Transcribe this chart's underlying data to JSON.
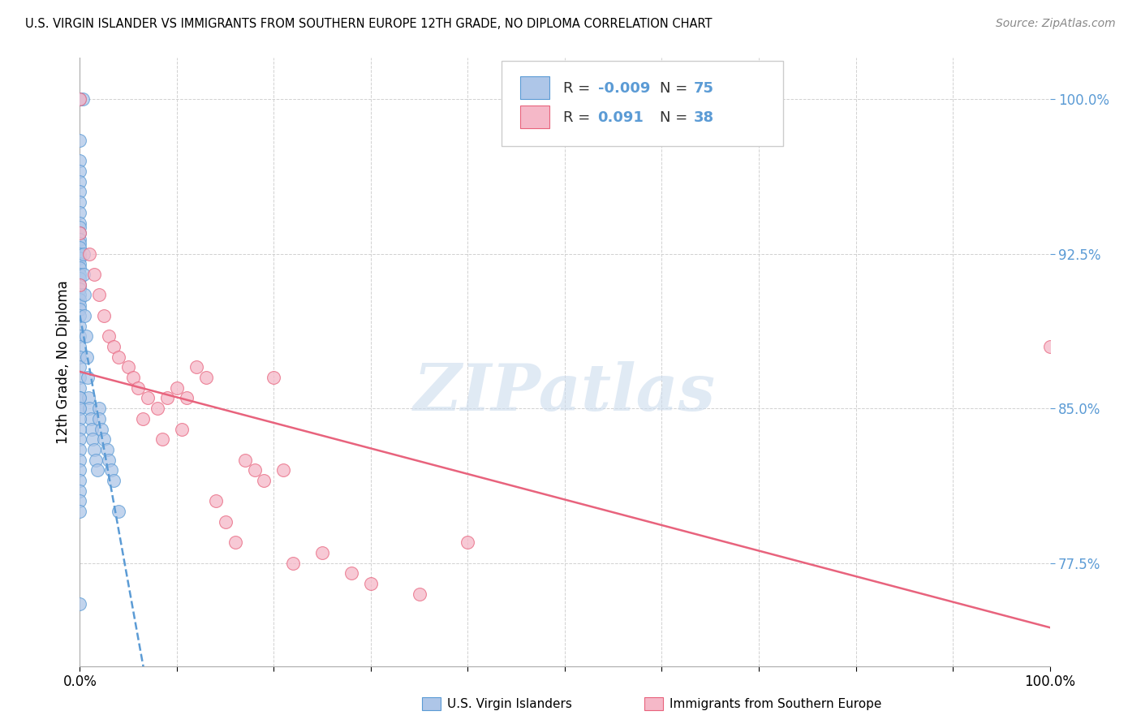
{
  "title": "U.S. VIRGIN ISLANDER VS IMMIGRANTS FROM SOUTHERN EUROPE 12TH GRADE, NO DIPLOMA CORRELATION CHART",
  "source": "Source: ZipAtlas.com",
  "ylabel": "12th Grade, No Diploma",
  "legend_label1": "U.S. Virgin Islanders",
  "legend_label2": "Immigrants from Southern Europe",
  "R1": -0.009,
  "N1": 75,
  "R2": 0.091,
  "N2": 38,
  "color1": "#aec6e8",
  "color2": "#f5b8c8",
  "line_color1": "#5b9bd5",
  "line_color2": "#e8637d",
  "watermark": "ZIPatlas",
  "xmin": 0.0,
  "xmax": 100.0,
  "ymin": 72.5,
  "ymax": 102.0,
  "ytick_values": [
    77.5,
    85.0,
    92.5,
    100.0
  ],
  "xtick_values": [
    0.0,
    10.0,
    20.0,
    30.0,
    40.0,
    50.0,
    60.0,
    70.0,
    80.0,
    90.0,
    100.0
  ],
  "blue_x": [
    0.0,
    0.0,
    0.3,
    0.0,
    0.0,
    0.0,
    0.0,
    0.0,
    0.0,
    0.0,
    0.0,
    0.0,
    0.0,
    0.0,
    0.0,
    0.0,
    0.0,
    0.0,
    0.0,
    0.0,
    0.0,
    0.0,
    0.0,
    0.0,
    0.0,
    0.0,
    0.0,
    0.0,
    0.0,
    0.0,
    0.0,
    0.0,
    0.0,
    0.0,
    0.0,
    0.0,
    0.0,
    0.0,
    0.4,
    0.4,
    0.5,
    0.5,
    0.6,
    0.7,
    0.8,
    0.9,
    1.0,
    1.1,
    1.2,
    1.3,
    1.5,
    1.6,
    1.8,
    2.0,
    2.0,
    2.2,
    2.5,
    2.8,
    3.0,
    3.2,
    3.5,
    4.0,
    0.0,
    0.0,
    0.0,
    0.0,
    0.0,
    0.0,
    0.0,
    0.0,
    0.0,
    0.0,
    0.0,
    0.0,
    0.0
  ],
  "blue_y": [
    100.0,
    100.0,
    100.0,
    98.0,
    97.0,
    96.5,
    96.0,
    95.5,
    95.0,
    94.5,
    94.0,
    93.8,
    93.5,
    93.2,
    93.0,
    92.8,
    92.5,
    92.3,
    92.0,
    91.8,
    91.5,
    91.3,
    91.0,
    90.8,
    90.5,
    90.3,
    90.0,
    89.8,
    89.5,
    89.0,
    88.5,
    88.0,
    87.5,
    87.0,
    86.5,
    86.0,
    85.5,
    85.0,
    92.5,
    91.5,
    90.5,
    89.5,
    88.5,
    87.5,
    86.5,
    85.5,
    85.0,
    84.5,
    84.0,
    83.5,
    83.0,
    82.5,
    82.0,
    85.0,
    84.5,
    84.0,
    83.5,
    83.0,
    82.5,
    82.0,
    81.5,
    80.0,
    85.5,
    85.0,
    84.5,
    84.0,
    83.5,
    83.0,
    82.5,
    82.0,
    81.5,
    81.0,
    80.5,
    80.0,
    75.5
  ],
  "pink_x": [
    0.0,
    0.0,
    0.0,
    1.0,
    1.5,
    2.0,
    2.5,
    3.0,
    3.5,
    4.0,
    5.0,
    5.5,
    6.0,
    7.0,
    8.0,
    9.0,
    10.0,
    11.0,
    12.0,
    13.0,
    14.0,
    15.0,
    16.0,
    17.0,
    18.0,
    19.0,
    20.0,
    21.0,
    22.0,
    25.0,
    28.0,
    30.0,
    35.0,
    40.0,
    6.5,
    8.5,
    10.5,
    100.0
  ],
  "pink_y": [
    100.0,
    93.5,
    91.0,
    92.5,
    91.5,
    90.5,
    89.5,
    88.5,
    88.0,
    87.5,
    87.0,
    86.5,
    86.0,
    85.5,
    85.0,
    85.5,
    86.0,
    85.5,
    87.0,
    86.5,
    80.5,
    79.5,
    78.5,
    82.5,
    82.0,
    81.5,
    86.5,
    82.0,
    77.5,
    78.0,
    77.0,
    76.5,
    76.0,
    78.5,
    84.5,
    83.5,
    84.0,
    88.0
  ]
}
